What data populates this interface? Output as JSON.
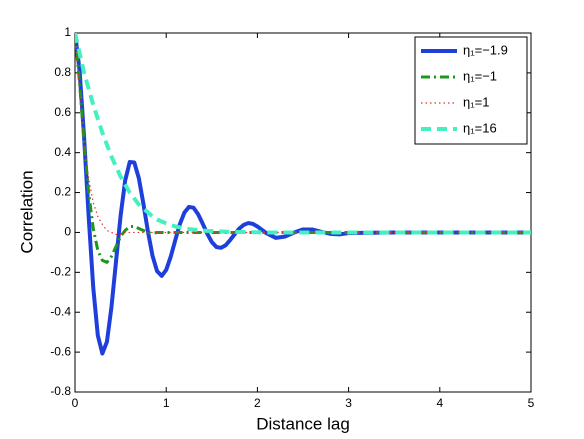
{
  "chart_data": {
    "type": "line",
    "x_label": "Distance lag",
    "y_label": "Correlation",
    "x": [
      0,
      0.05,
      0.1,
      0.15,
      0.2,
      0.25,
      0.3,
      0.35,
      0.4,
      0.45,
      0.5,
      0.55,
      0.6,
      0.65,
      0.7,
      0.75,
      0.8,
      0.85,
      0.9,
      0.95,
      1,
      1.05,
      1.1,
      1.15,
      1.2,
      1.25,
      1.3,
      1.35,
      1.4,
      1.45,
      1.5,
      1.55,
      1.6,
      1.65,
      1.7,
      1.75,
      1.8,
      1.85,
      1.9,
      1.95,
      2,
      2.1,
      2.2,
      2.3,
      2.4,
      2.5,
      2.6,
      2.7,
      2.8,
      2.9,
      3,
      3.5,
      4,
      4.5,
      5
    ],
    "series": [
      {
        "name": "η₁=−1.9",
        "color": "#1f3fdd",
        "values": [
          1,
          0.814,
          0.475,
          0.079,
          -0.276,
          -0.516,
          -0.607,
          -0.548,
          -0.373,
          -0.145,
          0.084,
          0.26,
          0.353,
          0.351,
          0.272,
          0.144,
          0.004,
          -0.117,
          -0.194,
          -0.218,
          -0.188,
          -0.121,
          -0.038,
          0.042,
          0.1,
          0.128,
          0.124,
          0.091,
          0.044,
          -0.006,
          -0.048,
          -0.073,
          -0.077,
          -0.065,
          -0.039,
          -0.009,
          0.019,
          0.038,
          0.047,
          0.043,
          0.03,
          -0.004,
          -0.027,
          -0.021,
          -0.001,
          0.015,
          0.015,
          0.003,
          -0.007,
          -0.01,
          -0.003,
          0,
          0,
          0,
          0
        ]
      },
      {
        "name": "η₁=−1",
        "color": "#1a9a1a",
        "values": [
          1,
          0.75,
          0.45,
          0.2,
          0.02,
          -0.09,
          -0.14,
          -0.15,
          -0.12,
          -0.07,
          -0.02,
          0.01,
          0.03,
          0.03,
          0.02,
          0.01,
          0,
          -0.005,
          0,
          0,
          0,
          0,
          0,
          0,
          0,
          0,
          0,
          0,
          0,
          0,
          0,
          0,
          0,
          0,
          0,
          0,
          0,
          0,
          0,
          0,
          0,
          0,
          0,
          0,
          0,
          0,
          0,
          0,
          0,
          0,
          0,
          0,
          0,
          0,
          0
        ]
      },
      {
        "name": "η₁=1",
        "color": "#e03030",
        "values": [
          1,
          0.7,
          0.45,
          0.27,
          0.15,
          0.08,
          0.04,
          0.01,
          0,
          -0.01,
          -0.01,
          0,
          0,
          0,
          0,
          0,
          0,
          0,
          0,
          0,
          0,
          0,
          0,
          0,
          0,
          0,
          0,
          0,
          0,
          0,
          0,
          0,
          0,
          0,
          0,
          0,
          0,
          0,
          0,
          0,
          0,
          0,
          0,
          0,
          0,
          0,
          0,
          0,
          0,
          0,
          0,
          0,
          0,
          0,
          0
        ]
      },
      {
        "name": "η₁=16",
        "color": "#44f0c0",
        "values": [
          1,
          0.9,
          0.8,
          0.72,
          0.64,
          0.57,
          0.5,
          0.44,
          0.38,
          0.33,
          0.28,
          0.24,
          0.2,
          0.17,
          0.14,
          0.12,
          0.1,
          0.08,
          0.065,
          0.055,
          0.045,
          0.037,
          0.03,
          0.025,
          0.02,
          0.017,
          0.014,
          0.012,
          0.01,
          0.008,
          0.007,
          0.006,
          0.005,
          0.004,
          0.003,
          0.003,
          0.002,
          0.002,
          0.001,
          0.001,
          0.001,
          0,
          0,
          0,
          0,
          0,
          0,
          0,
          0,
          0,
          0,
          0,
          0,
          0,
          0
        ]
      }
    ],
    "xlim": [
      0,
      5
    ],
    "xticks": [
      0,
      1,
      2,
      3,
      4,
      5
    ],
    "ylim": [
      -0.8,
      1
    ],
    "yticks": [
      -0.8,
      -0.6,
      -0.4,
      -0.2,
      0,
      0.2,
      0.4,
      0.6,
      0.8,
      1
    ],
    "legend": "upper right"
  }
}
